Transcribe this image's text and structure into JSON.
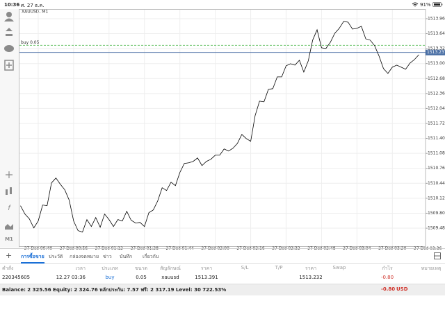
{
  "status_bar": {
    "time": "10:36",
    "date": "ศ. 27 ธ.ค.",
    "battery": "91%"
  },
  "toolbar": {
    "timeframe": "M1"
  },
  "chart_data": {
    "type": "line",
    "title": "XAUUSD, M1",
    "color": "#000000",
    "grid": true,
    "x": [
      "00:32",
      "00:34",
      "00:36",
      "00:38",
      "00:40",
      "00:42",
      "00:44",
      "00:46",
      "00:48",
      "00:50",
      "00:52",
      "00:54",
      "00:56",
      "00:58",
      "01:00",
      "01:02",
      "01:04",
      "01:06",
      "01:08",
      "01:10",
      "01:12",
      "01:14",
      "01:16",
      "01:18",
      "01:20",
      "01:22",
      "01:24",
      "01:26",
      "01:28",
      "01:30",
      "01:32",
      "01:34",
      "01:36",
      "01:38",
      "01:40",
      "01:42",
      "01:44",
      "01:46",
      "01:48",
      "01:50",
      "01:52",
      "01:54",
      "01:56",
      "01:58",
      "02:00",
      "02:02",
      "02:04",
      "02:06",
      "02:08",
      "02:10",
      "02:12",
      "02:14",
      "02:16",
      "02:18",
      "02:20",
      "02:22",
      "02:24",
      "02:26",
      "02:28",
      "02:30",
      "02:32",
      "02:34",
      "02:36",
      "02:38",
      "02:40",
      "02:42",
      "02:44",
      "02:46",
      "02:48",
      "02:50",
      "02:52",
      "02:54",
      "02:56",
      "02:58",
      "03:00",
      "03:02",
      "03:04",
      "03:06",
      "03:08",
      "03:10",
      "03:12",
      "03:14",
      "03:16",
      "03:18",
      "03:20",
      "03:22",
      "03:24",
      "03:26",
      "03:28",
      "03:30",
      "03:32"
    ],
    "values": [
      1509.96,
      1509.782,
      1509.679,
      1509.486,
      1509.634,
      1509.975,
      1509.96,
      1510.449,
      1510.553,
      1510.419,
      1510.301,
      1510.079,
      1509.634,
      1509.427,
      1509.397,
      1509.664,
      1509.516,
      1509.708,
      1509.501,
      1509.782,
      1509.664,
      1509.516,
      1509.664,
      1509.634,
      1509.841,
      1509.649,
      1509.59,
      1509.604,
      1509.516,
      1509.812,
      1509.871,
      1510.064,
      1510.345,
      1510.286,
      1510.464,
      1510.39,
      1510.671,
      1510.864,
      1510.878,
      1510.908,
      1510.982,
      1510.819,
      1510.908,
      1510.953,
      1511.041,
      1511.041,
      1511.175,
      1511.13,
      1511.19,
      1511.293,
      1511.486,
      1511.397,
      1511.338,
      1511.886,
      1512.197,
      1512.182,
      1512.449,
      1512.464,
      1512.716,
      1512.716,
      1512.953,
      1512.997,
      1512.967,
      1513.071,
      1512.819,
      1513.056,
      1513.501,
      1513.723,
      1513.338,
      1513.323,
      1513.456,
      1513.649,
      1513.753,
      1513.901,
      1513.886,
      1513.738,
      1513.753,
      1513.797,
      1513.53,
      1513.501,
      1513.382,
      1513.16,
      1512.893,
      1512.79,
      1512.923,
      1512.967,
      1512.923,
      1512.879,
      1513.012,
      1513.086,
      1513.19
    ],
    "xlim": [
      "00:32",
      "03:35"
    ],
    "xticks": [
      {
        "value": "00:40",
        "label": "27 Dec 00:40"
      },
      {
        "value": "00:56",
        "label": "27 Dec 00:56"
      },
      {
        "value": "01:12",
        "label": "27 Dec 01:12"
      },
      {
        "value": "01:28",
        "label": "27 Dec 01:28"
      },
      {
        "value": "01:44",
        "label": "27 Dec 01:44"
      },
      {
        "value": "02:00",
        "label": "27 Dec 02:00"
      },
      {
        "value": "02:16",
        "label": "27 Dec 02:16"
      },
      {
        "value": "02:32",
        "label": "27 Dec 02:32"
      },
      {
        "value": "02:48",
        "label": "27 Dec 02:48"
      },
      {
        "value": "03:04",
        "label": "27 Dec 03:04"
      },
      {
        "value": "03:20",
        "label": "27 Dec 03:20"
      },
      {
        "value": "03:36",
        "label": "27 Dec 03:36"
      }
    ],
    "ylim": [
      1509.095,
      1514.167
    ],
    "yticks": [
      {
        "value": 1513.96,
        "label": "1513.960"
      },
      {
        "value": 1513.64,
        "label": "1513.640"
      },
      {
        "value": 1513.32,
        "label": "1513.320"
      },
      {
        "value": 1513.0,
        "label": "1513.000"
      },
      {
        "value": 1512.68,
        "label": "1512.680"
      },
      {
        "value": 1512.36,
        "label": "1512.360"
      },
      {
        "value": 1512.04,
        "label": "1512.040"
      },
      {
        "value": 1511.72,
        "label": "1511.720"
      },
      {
        "value": 1511.4,
        "label": "1511.400"
      },
      {
        "value": 1511.08,
        "label": "1511.080"
      },
      {
        "value": 1510.76,
        "label": "1510.760"
      },
      {
        "value": 1510.44,
        "label": "1510.440"
      },
      {
        "value": 1510.12,
        "label": "1510.120"
      },
      {
        "value": 1509.8,
        "label": "1509.800"
      },
      {
        "value": 1509.48,
        "label": "1509.480"
      }
    ],
    "order_line": {
      "label": "buy 0.05",
      "value": 1513.391,
      "color": "#6cc46c"
    },
    "price_line": {
      "value": 1513.237,
      "color": "#4a6fa5"
    }
  },
  "tabs": [
    "การซื้อขาย",
    "ประวัติ",
    "กล่องจดหมาย",
    "ข่าว",
    "บันทึก",
    "เกี่ยวกับ"
  ],
  "active_tab": 0,
  "trades": {
    "columns": {
      "order": "คำสั่ง",
      "time": "เวลา",
      "type": "ประเภท",
      "size": "ขนาด",
      "symbol": "สัญลักษณ์",
      "price": "ราคา",
      "sl": "S/L",
      "tp": "T/P",
      "current_price": "ราคา",
      "swap": "Swap",
      "profit": "กำไร",
      "comment": "หมายเหตุ"
    },
    "rows": [
      {
        "order": "220345605",
        "time": "12.27 03:36",
        "type": "buy",
        "size": "0.05",
        "symbol": "xauusd",
        "price": "1513.391",
        "current_price": "1513.232",
        "profit": "-0.80"
      }
    ]
  },
  "account": {
    "summary": "Balance: 2 325.56 Equity: 2 324.76 หลักประกัน: 7.57 ฟรี: 2 317.19 Level: 30 722.53%",
    "profit": "-0.80",
    "currency": "USD"
  }
}
